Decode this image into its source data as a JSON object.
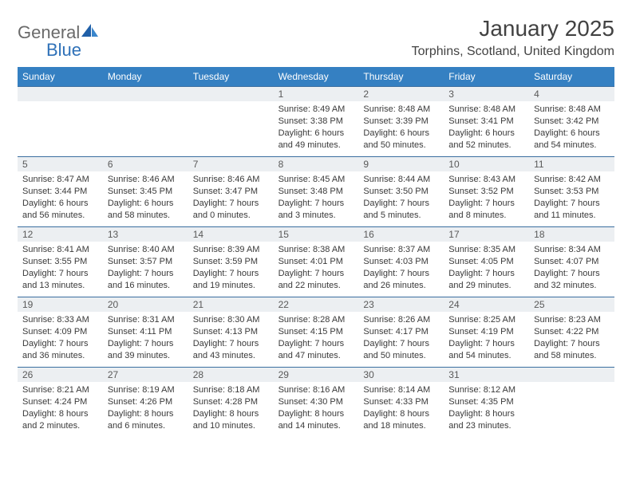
{
  "brand": {
    "part1": "General",
    "part2": "Blue"
  },
  "title": "January 2025",
  "location": "Torphins, Scotland, United Kingdom",
  "colors": {
    "header_bg": "#3580c2",
    "header_text": "#ffffff",
    "daynum_bg": "#eceff2",
    "daynum_text": "#595959",
    "body_text": "#3a3a3a",
    "border": "#3a6ea0",
    "title_text": "#424242",
    "logo_gray": "#6a6a6a",
    "logo_blue": "#2f71b8"
  },
  "weekdays": [
    "Sunday",
    "Monday",
    "Tuesday",
    "Wednesday",
    "Thursday",
    "Friday",
    "Saturday"
  ],
  "grid": {
    "rows": 5,
    "cols": 7,
    "first_day_col": 3,
    "days_in_month": 31
  },
  "days": [
    {
      "n": 1,
      "sunrise": "8:49 AM",
      "sunset": "3:38 PM",
      "daylight": "6 hours and 49 minutes."
    },
    {
      "n": 2,
      "sunrise": "8:48 AM",
      "sunset": "3:39 PM",
      "daylight": "6 hours and 50 minutes."
    },
    {
      "n": 3,
      "sunrise": "8:48 AM",
      "sunset": "3:41 PM",
      "daylight": "6 hours and 52 minutes."
    },
    {
      "n": 4,
      "sunrise": "8:48 AM",
      "sunset": "3:42 PM",
      "daylight": "6 hours and 54 minutes."
    },
    {
      "n": 5,
      "sunrise": "8:47 AM",
      "sunset": "3:44 PM",
      "daylight": "6 hours and 56 minutes."
    },
    {
      "n": 6,
      "sunrise": "8:46 AM",
      "sunset": "3:45 PM",
      "daylight": "6 hours and 58 minutes."
    },
    {
      "n": 7,
      "sunrise": "8:46 AM",
      "sunset": "3:47 PM",
      "daylight": "7 hours and 0 minutes."
    },
    {
      "n": 8,
      "sunrise": "8:45 AM",
      "sunset": "3:48 PM",
      "daylight": "7 hours and 3 minutes."
    },
    {
      "n": 9,
      "sunrise": "8:44 AM",
      "sunset": "3:50 PM",
      "daylight": "7 hours and 5 minutes."
    },
    {
      "n": 10,
      "sunrise": "8:43 AM",
      "sunset": "3:52 PM",
      "daylight": "7 hours and 8 minutes."
    },
    {
      "n": 11,
      "sunrise": "8:42 AM",
      "sunset": "3:53 PM",
      "daylight": "7 hours and 11 minutes."
    },
    {
      "n": 12,
      "sunrise": "8:41 AM",
      "sunset": "3:55 PM",
      "daylight": "7 hours and 13 minutes."
    },
    {
      "n": 13,
      "sunrise": "8:40 AM",
      "sunset": "3:57 PM",
      "daylight": "7 hours and 16 minutes."
    },
    {
      "n": 14,
      "sunrise": "8:39 AM",
      "sunset": "3:59 PM",
      "daylight": "7 hours and 19 minutes."
    },
    {
      "n": 15,
      "sunrise": "8:38 AM",
      "sunset": "4:01 PM",
      "daylight": "7 hours and 22 minutes."
    },
    {
      "n": 16,
      "sunrise": "8:37 AM",
      "sunset": "4:03 PM",
      "daylight": "7 hours and 26 minutes."
    },
    {
      "n": 17,
      "sunrise": "8:35 AM",
      "sunset": "4:05 PM",
      "daylight": "7 hours and 29 minutes."
    },
    {
      "n": 18,
      "sunrise": "8:34 AM",
      "sunset": "4:07 PM",
      "daylight": "7 hours and 32 minutes."
    },
    {
      "n": 19,
      "sunrise": "8:33 AM",
      "sunset": "4:09 PM",
      "daylight": "7 hours and 36 minutes."
    },
    {
      "n": 20,
      "sunrise": "8:31 AM",
      "sunset": "4:11 PM",
      "daylight": "7 hours and 39 minutes."
    },
    {
      "n": 21,
      "sunrise": "8:30 AM",
      "sunset": "4:13 PM",
      "daylight": "7 hours and 43 minutes."
    },
    {
      "n": 22,
      "sunrise": "8:28 AM",
      "sunset": "4:15 PM",
      "daylight": "7 hours and 47 minutes."
    },
    {
      "n": 23,
      "sunrise": "8:26 AM",
      "sunset": "4:17 PM",
      "daylight": "7 hours and 50 minutes."
    },
    {
      "n": 24,
      "sunrise": "8:25 AM",
      "sunset": "4:19 PM",
      "daylight": "7 hours and 54 minutes."
    },
    {
      "n": 25,
      "sunrise": "8:23 AM",
      "sunset": "4:22 PM",
      "daylight": "7 hours and 58 minutes."
    },
    {
      "n": 26,
      "sunrise": "8:21 AM",
      "sunset": "4:24 PM",
      "daylight": "8 hours and 2 minutes."
    },
    {
      "n": 27,
      "sunrise": "8:19 AM",
      "sunset": "4:26 PM",
      "daylight": "8 hours and 6 minutes."
    },
    {
      "n": 28,
      "sunrise": "8:18 AM",
      "sunset": "4:28 PM",
      "daylight": "8 hours and 10 minutes."
    },
    {
      "n": 29,
      "sunrise": "8:16 AM",
      "sunset": "4:30 PM",
      "daylight": "8 hours and 14 minutes."
    },
    {
      "n": 30,
      "sunrise": "8:14 AM",
      "sunset": "4:33 PM",
      "daylight": "8 hours and 18 minutes."
    },
    {
      "n": 31,
      "sunrise": "8:12 AM",
      "sunset": "4:35 PM",
      "daylight": "8 hours and 23 minutes."
    }
  ],
  "labels": {
    "sunrise": "Sunrise:",
    "sunset": "Sunset:",
    "daylight": "Daylight:"
  }
}
